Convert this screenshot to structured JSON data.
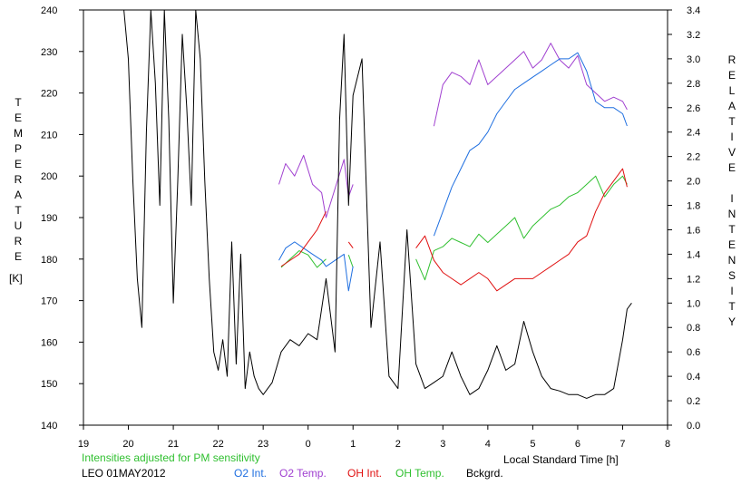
{
  "chart_data": {
    "type": "line",
    "left_axis": {
      "label": "TEMPERATURE",
      "unit": "[K]",
      "range": [
        140,
        240
      ],
      "ticks": [
        "140",
        "150",
        "160",
        "170",
        "180",
        "190",
        "200",
        "210",
        "220",
        "230",
        "240"
      ]
    },
    "right_axis": {
      "label": "RELATIVE INTENSITY",
      "range": [
        0.0,
        3.4
      ],
      "ticks": [
        "0.0",
        "0.2",
        "0.4",
        "0.6",
        "0.8",
        "1.0",
        "1.2",
        "1.4",
        "1.6",
        "1.8",
        "2.0",
        "2.2",
        "2.4",
        "2.6",
        "2.8",
        "3.0",
        "3.2",
        "3.4"
      ]
    },
    "x_axis": {
      "label": "Local Standard Time [h]",
      "range": [
        19,
        32
      ],
      "ticks": [
        "19",
        "20",
        "21",
        "22",
        "23",
        "0",
        "1",
        "2",
        "3",
        "4",
        "5",
        "6",
        "7",
        "8"
      ]
    },
    "note": "Intensities adjusted for PM sensitivity",
    "station": "LEO 01MAY2012",
    "legend": [
      {
        "name": "O2 Int.",
        "color": "#1f6fe0"
      },
      {
        "name": "O2 Temp.",
        "color": "#a040d0"
      },
      {
        "name": "OH Int.",
        "color": "#e01010"
      },
      {
        "name": "OH Temp.",
        "color": "#30c030"
      },
      {
        "name": "Bckgrd.",
        "color": "#000000"
      }
    ],
    "series": [
      {
        "name": "Bckgrd.",
        "axis": "right",
        "x": [
          19.9,
          20.0,
          20.1,
          20.2,
          20.3,
          20.4,
          20.5,
          20.6,
          20.7,
          20.8,
          20.9,
          21.0,
          21.1,
          21.2,
          21.3,
          21.4,
          21.5,
          21.6,
          21.7,
          21.8,
          21.9,
          22.0,
          22.1,
          22.2,
          22.3,
          22.4,
          22.5,
          22.6,
          22.7,
          22.8,
          22.9,
          23.0,
          23.2,
          23.4,
          23.6,
          23.8,
          24.0,
          24.2,
          24.4,
          24.6,
          24.7,
          24.8,
          24.9,
          25.0,
          25.2,
          25.4,
          25.6,
          25.8,
          26.0,
          26.2,
          26.4,
          26.6,
          26.8,
          27.0,
          27.2,
          27.4,
          27.6,
          27.8,
          28.0,
          28.2,
          28.4,
          28.6,
          28.8,
          29.0,
          29.2,
          29.4,
          29.6,
          29.8,
          30.0,
          30.2,
          30.4,
          30.6,
          30.8,
          31.0,
          31.1,
          31.2
        ],
        "y": [
          3.4,
          3.0,
          2.0,
          1.2,
          0.8,
          2.4,
          3.4,
          2.8,
          1.8,
          3.4,
          2.5,
          1.0,
          2.0,
          3.2,
          2.6,
          1.8,
          3.4,
          3.0,
          2.0,
          1.2,
          0.6,
          0.45,
          0.7,
          0.4,
          1.5,
          0.5,
          1.4,
          0.3,
          0.6,
          0.4,
          0.3,
          0.25,
          0.35,
          0.6,
          0.7,
          0.65,
          0.75,
          0.7,
          1.2,
          0.6,
          2.5,
          3.2,
          1.8,
          2.7,
          3.0,
          0.8,
          1.5,
          0.4,
          0.3,
          1.6,
          0.5,
          0.3,
          0.35,
          0.4,
          0.6,
          0.4,
          0.25,
          0.3,
          0.45,
          0.65,
          0.45,
          0.5,
          0.85,
          0.6,
          0.4,
          0.3,
          0.28,
          0.25,
          0.25,
          0.22,
          0.25,
          0.25,
          0.3,
          0.7,
          0.95,
          1.0
        ]
      },
      {
        "name": "O2 Temp.",
        "axis": "left",
        "x": [
          23.35,
          23.5,
          23.7,
          23.9,
          24.1,
          24.3,
          24.4,
          24.8,
          24.9,
          25.0,
          26.8,
          27.0,
          27.2,
          27.4,
          27.6,
          27.8,
          28.0,
          28.2,
          28.4,
          28.6,
          28.8,
          29.0,
          29.2,
          29.4,
          29.6,
          29.8,
          30.0,
          30.2,
          30.4,
          30.6,
          30.8,
          31.0,
          31.1
        ],
        "y": [
          198,
          203,
          200,
          205,
          198,
          196,
          190,
          204,
          195,
          198,
          212,
          222,
          225,
          224,
          222,
          228,
          222,
          224,
          226,
          228,
          230,
          226,
          228,
          232,
          228,
          226,
          229,
          222,
          220,
          218,
          219,
          218,
          216
        ]
      },
      {
        "name": "O2 Int.",
        "axis": "right",
        "x": [
          23.35,
          23.5,
          23.7,
          23.9,
          24.1,
          24.3,
          24.4,
          24.8,
          24.9,
          25.0,
          26.8,
          27.0,
          27.2,
          27.4,
          27.6,
          27.8,
          28.0,
          28.2,
          28.4,
          28.6,
          28.8,
          29.0,
          29.2,
          29.4,
          29.6,
          29.8,
          30.0,
          30.2,
          30.4,
          30.6,
          30.8,
          31.0,
          31.1
        ],
        "y": [
          1.35,
          1.45,
          1.5,
          1.45,
          1.4,
          1.35,
          1.3,
          1.4,
          1.1,
          1.3,
          1.55,
          1.75,
          1.95,
          2.1,
          2.25,
          2.3,
          2.4,
          2.55,
          2.65,
          2.75,
          2.8,
          2.85,
          2.9,
          2.95,
          3.0,
          3.0,
          3.05,
          2.9,
          2.65,
          2.6,
          2.6,
          2.55,
          2.45
        ]
      },
      {
        "name": "OH Int.",
        "axis": "right",
        "x": [
          23.4,
          23.6,
          23.8,
          24.0,
          24.2,
          24.4,
          24.9,
          25.0,
          26.4,
          26.6,
          26.8,
          27.0,
          27.2,
          27.4,
          27.6,
          27.8,
          28.0,
          28.2,
          28.4,
          28.6,
          28.8,
          29.0,
          29.2,
          29.4,
          29.6,
          29.8,
          30.0,
          30.2,
          30.4,
          30.6,
          30.8,
          31.0,
          31.1
        ],
        "y": [
          1.3,
          1.35,
          1.4,
          1.5,
          1.6,
          1.75,
          1.5,
          1.45,
          1.45,
          1.55,
          1.35,
          1.25,
          1.2,
          1.15,
          1.2,
          1.25,
          1.2,
          1.1,
          1.15,
          1.2,
          1.2,
          1.2,
          1.25,
          1.3,
          1.35,
          1.4,
          1.5,
          1.55,
          1.75,
          1.9,
          2.0,
          2.1,
          1.95
        ]
      },
      {
        "name": "OH Temp.",
        "axis": "left",
        "x": [
          23.4,
          23.6,
          23.8,
          24.0,
          24.2,
          24.4,
          24.9,
          25.0,
          26.4,
          26.6,
          26.8,
          27.0,
          27.2,
          27.4,
          27.6,
          27.8,
          28.0,
          28.2,
          28.4,
          28.6,
          28.8,
          29.0,
          29.2,
          29.4,
          29.6,
          29.8,
          30.0,
          30.2,
          30.4,
          30.6,
          30.8,
          31.0,
          31.1
        ],
        "y": [
          178,
          180,
          182,
          181,
          178,
          180,
          181,
          178,
          180,
          175,
          182,
          183,
          185,
          184,
          183,
          186,
          184,
          186,
          188,
          190,
          185,
          188,
          190,
          192,
          193,
          195,
          196,
          198,
          200,
          195,
          198,
          200,
          198
        ]
      }
    ]
  }
}
